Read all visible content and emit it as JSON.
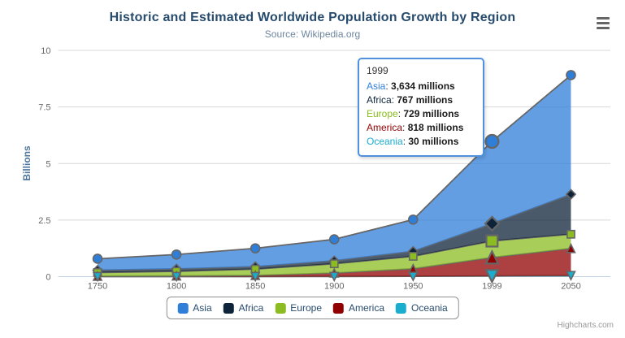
{
  "chart_data": {
    "type": "area",
    "stacking": "normal",
    "title": "Historic and Estimated Worldwide Population Growth by Region",
    "subtitle": "Source: Wikipedia.org",
    "categories": [
      "1750",
      "1800",
      "1850",
      "1900",
      "1950",
      "1999",
      "2050"
    ],
    "series": [
      {
        "name": "Asia",
        "color": "#2f7ed8",
        "marker_symbol": "circle",
        "values": [
          502,
          635,
          809,
          947,
          1402,
          3634,
          5268
        ]
      },
      {
        "name": "Africa",
        "color": "#0d233a",
        "marker_symbol": "diamond",
        "values": [
          106,
          107,
          111,
          133,
          221,
          767,
          1766
        ]
      },
      {
        "name": "Europe",
        "color": "#8bbc21",
        "marker_symbol": "square",
        "values": [
          163,
          203,
          276,
          408,
          547,
          729,
          628
        ]
      },
      {
        "name": "America",
        "color": "#910000",
        "marker_symbol": "triangle",
        "values": [
          18,
          31,
          54,
          156,
          339,
          818,
          1201
        ]
      },
      {
        "name": "Oceania",
        "color": "#1aadce",
        "marker_symbol": "triangle-down",
        "values": [
          2,
          2,
          2,
          6,
          13,
          30,
          46
        ]
      }
    ],
    "values_unit": "millions",
    "xlabel": "",
    "ylabel": "Billions",
    "ylim": [
      0,
      10
    ],
    "yticks": [
      "0",
      "2.5",
      "5",
      "7.5",
      "10"
    ],
    "grid": true,
    "legend_position": "bottom",
    "hovered_category": "1999",
    "hovered_index": 5
  },
  "tooltip": {
    "header": "1999",
    "rows": [
      {
        "name": "Asia",
        "value": "3,634 millions",
        "color": "#2f7ed8"
      },
      {
        "name": "Africa",
        "value": "767 millions",
        "color": "#0d233a"
      },
      {
        "name": "Europe",
        "value": "729 millions",
        "color": "#8bbc21"
      },
      {
        "name": "America",
        "value": "818 millions",
        "color": "#910000"
      },
      {
        "name": "Oceania",
        "value": "30 millions",
        "color": "#1aadce"
      }
    ]
  },
  "legend": {
    "items": [
      {
        "label": "Asia",
        "color": "#2f7ed8"
      },
      {
        "label": "Africa",
        "color": "#0d233a"
      },
      {
        "label": "Europe",
        "color": "#8bbc21"
      },
      {
        "label": "America",
        "color": "#910000"
      },
      {
        "label": "Oceania",
        "color": "#1aadce"
      }
    ]
  },
  "export_menu": {
    "icon": "hamburger"
  },
  "credits": {
    "label": "Highcharts.com"
  },
  "colors": {
    "grid": "#d8d8d8",
    "axis_line": "#c0d0e0",
    "axis_label": "#666666",
    "area_line": "#666666",
    "title": "#274b6d",
    "subtitle": "#6d869f",
    "y_title": "#4d759e",
    "legend_text": "#274b6d",
    "legend_border": "#909090",
    "credits": "#999999",
    "tooltip_border": "#2f7ed8"
  }
}
